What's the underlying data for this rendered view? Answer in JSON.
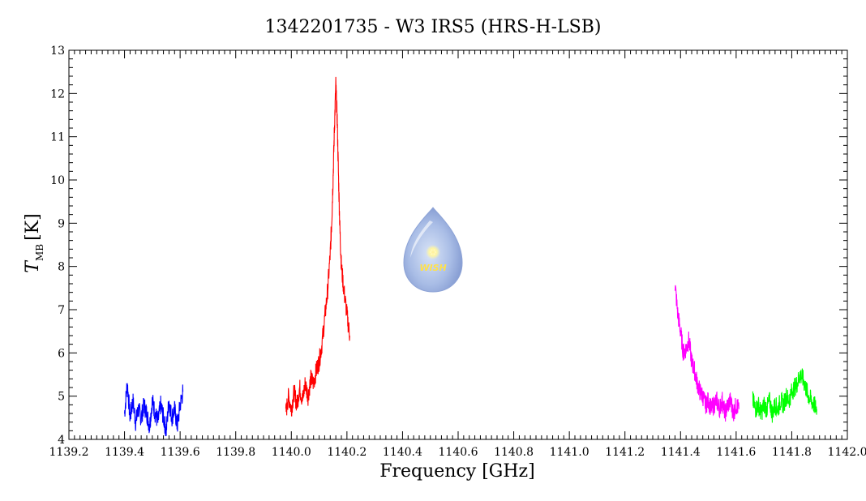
{
  "chart_data": {
    "type": "line",
    "title": "1342201735 - W3 IRS5 (HRS-H-LSB)",
    "xlabel": "Frequency [GHz]",
    "ylabel_main": "T",
    "ylabel_sub": "MB",
    "ylabel_unit": "[K]",
    "xlim": [
      1139.2,
      1142.0
    ],
    "ylim": [
      4,
      13
    ],
    "xticks": [
      1139.2,
      1139.4,
      1139.6,
      1139.8,
      1140.0,
      1140.2,
      1140.4,
      1140.6,
      1140.8,
      1141.0,
      1141.2,
      1141.4,
      1141.6,
      1141.8,
      1142.0
    ],
    "xtick_labels": [
      "1139.2",
      "1139.4",
      "1139.6",
      "1139.8",
      "1140.0",
      "1140.2",
      "1140.4",
      "1140.6",
      "1140.8",
      "1141.0",
      "1141.2",
      "1141.4",
      "1141.6",
      "1141.8",
      "1142.0"
    ],
    "yticks": [
      4,
      5,
      6,
      7,
      8,
      9,
      10,
      11,
      12,
      13
    ],
    "ytick_labels": [
      "4",
      "5",
      "6",
      "7",
      "8",
      "9",
      "10",
      "11",
      "12",
      "13"
    ],
    "grid": false,
    "logo_text": "WISH",
    "series": [
      {
        "color": "#0000ff",
        "x": [
          1139.4,
          1139.41,
          1139.42,
          1139.43,
          1139.44,
          1139.45,
          1139.46,
          1139.47,
          1139.48,
          1139.49,
          1139.5,
          1139.51,
          1139.52,
          1139.53,
          1139.54,
          1139.55,
          1139.56,
          1139.57,
          1139.58,
          1139.59,
          1139.6,
          1139.61
        ],
        "y": [
          4.6,
          5.3,
          4.5,
          4.9,
          4.4,
          4.7,
          4.5,
          4.8,
          4.6,
          4.3,
          4.9,
          4.6,
          4.4,
          4.8,
          4.5,
          4.2,
          4.9,
          4.5,
          4.7,
          4.3,
          4.8,
          5.1
        ]
      },
      {
        "color": "#ff0000",
        "x": [
          1139.98,
          1139.99,
          1140.0,
          1140.01,
          1140.02,
          1140.03,
          1140.04,
          1140.05,
          1140.06,
          1140.07,
          1140.08,
          1140.09,
          1140.1,
          1140.11,
          1140.12,
          1140.13,
          1140.14,
          1140.145,
          1140.15,
          1140.155,
          1140.16,
          1140.165,
          1140.17,
          1140.175,
          1140.18,
          1140.19,
          1140.2,
          1140.21
        ],
        "y": [
          4.6,
          5.0,
          4.7,
          5.1,
          4.8,
          5.2,
          4.9,
          5.3,
          5.0,
          5.4,
          5.3,
          5.6,
          5.8,
          6.2,
          6.8,
          7.4,
          8.3,
          9.0,
          10.0,
          11.2,
          12.2,
          11.4,
          10.0,
          8.8,
          8.0,
          7.4,
          6.9,
          6.4
        ]
      },
      {
        "color": "#ff00ff",
        "x": [
          1141.38,
          1141.39,
          1141.4,
          1141.41,
          1141.42,
          1141.43,
          1141.44,
          1141.45,
          1141.46,
          1141.47,
          1141.48,
          1141.49,
          1141.5,
          1141.51,
          1141.52,
          1141.53,
          1141.54,
          1141.55,
          1141.56,
          1141.57,
          1141.58,
          1141.59,
          1141.6,
          1141.61
        ],
        "y": [
          7.6,
          6.9,
          6.5,
          6.0,
          6.1,
          6.3,
          5.8,
          5.6,
          5.3,
          5.1,
          5.0,
          4.8,
          4.9,
          4.7,
          4.8,
          4.9,
          4.7,
          4.9,
          4.6,
          4.8,
          4.9,
          4.6,
          4.8,
          4.7
        ]
      },
      {
        "color": "#00ff00",
        "x": [
          1141.66,
          1141.67,
          1141.68,
          1141.69,
          1141.7,
          1141.71,
          1141.72,
          1141.73,
          1141.74,
          1141.75,
          1141.76,
          1141.77,
          1141.78,
          1141.79,
          1141.8,
          1141.81,
          1141.82,
          1141.83,
          1141.84,
          1141.85,
          1141.86,
          1141.87,
          1141.88,
          1141.89
        ],
        "y": [
          4.9,
          4.7,
          4.8,
          4.6,
          4.8,
          4.7,
          4.9,
          4.6,
          4.8,
          4.7,
          4.9,
          4.8,
          5.0,
          4.9,
          5.1,
          5.2,
          5.3,
          5.5,
          5.4,
          5.2,
          5.0,
          4.9,
          4.8,
          4.7
        ]
      }
    ]
  }
}
